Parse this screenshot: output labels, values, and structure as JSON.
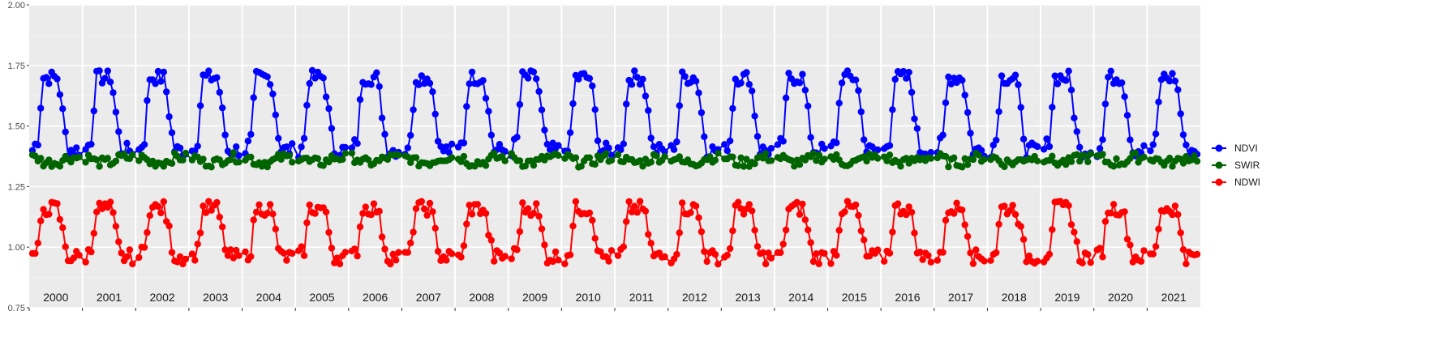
{
  "chart_data": {
    "type": "line",
    "title": "",
    "xlabel": "",
    "ylabel": "",
    "ylim": [
      0.75,
      2.0
    ],
    "yticks": [
      "0.75",
      "1.00",
      "1.25",
      "1.50",
      "1.75",
      "2.00"
    ],
    "facets": [
      "2000",
      "2001",
      "2002",
      "2003",
      "2004",
      "2005",
      "2006",
      "2007",
      "2008",
      "2009",
      "2010",
      "2011",
      "2012",
      "2013",
      "2014",
      "2015",
      "2016",
      "2017",
      "2018",
      "2019",
      "2020",
      "2021"
    ],
    "grid": true,
    "legend_position": "right",
    "series": [
      {
        "name": "NDVI",
        "color": "#0000ff",
        "base": 1.4,
        "peak": 1.7,
        "noise": 0.03
      },
      {
        "name": "SWIR",
        "color": "#006400",
        "base": 1.37,
        "peak": 1.35,
        "noise": 0.02
      },
      {
        "name": "NDWI",
        "color": "#ff0000",
        "base": 0.96,
        "peak": 1.16,
        "noise": 0.03
      }
    ]
  }
}
